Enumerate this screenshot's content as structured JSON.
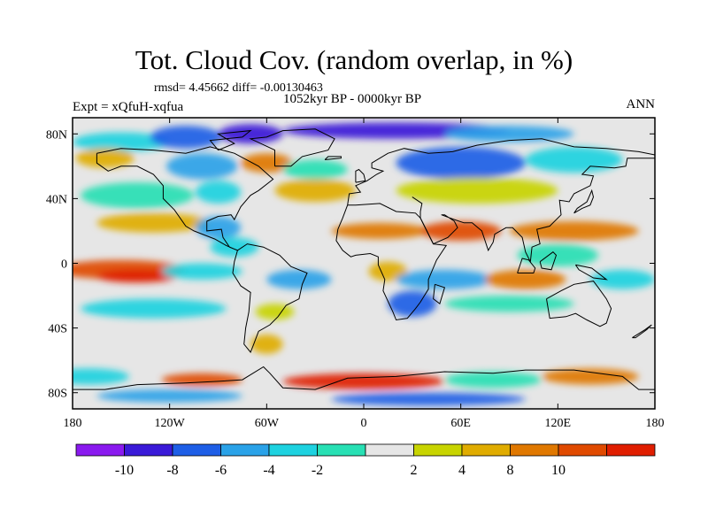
{
  "title": "Tot. Cloud Cov. (random overlap, in %)",
  "stats": "rmsd= 4.45662 diff= -0.00130463",
  "period": "1052kyr BP - 0000kyr BP",
  "experiment": "Expt = xQfuH-xqfua",
  "season": "ANN",
  "map": {
    "lon_range": [
      -180,
      180
    ],
    "lat_range": [
      -90,
      90
    ],
    "x_ticks": [
      {
        "lon": -180,
        "label": "180"
      },
      {
        "lon": -120,
        "label": "120W"
      },
      {
        "lon": -60,
        "label": "60W"
      },
      {
        "lon": 0,
        "label": "0"
      },
      {
        "lon": 60,
        "label": "60E"
      },
      {
        "lon": 120,
        "label": "120E"
      },
      {
        "lon": 180,
        "label": "180"
      }
    ],
    "y_ticks": [
      {
        "lat": 80,
        "label": "80N"
      },
      {
        "lat": 40,
        "label": "40N"
      },
      {
        "lat": 0,
        "label": "0"
      },
      {
        "lat": -40,
        "label": "40S"
      },
      {
        "lat": -80,
        "label": "80S"
      }
    ],
    "background_color": "#e6e6e6"
  },
  "colorbar": {
    "colors": [
      "#8a1aef",
      "#3a1ad8",
      "#1e5ee6",
      "#2aa2e8",
      "#1ed2e0",
      "#28e0b4",
      "#e6e6e6",
      "#c8d400",
      "#e0ac00",
      "#e07800",
      "#e04a00",
      "#e01e00"
    ],
    "labels": [
      "-10",
      "-8",
      "-6",
      "-4",
      "-2",
      "2",
      "4",
      "8",
      "10"
    ]
  },
  "fields": [
    {
      "lon": -150,
      "lat": 75,
      "rx": 30,
      "ry": 6,
      "level": 4
    },
    {
      "lon": -110,
      "lat": 78,
      "rx": 22,
      "ry": 7,
      "level": 2
    },
    {
      "lon": -70,
      "lat": 80,
      "rx": 20,
      "ry": 6,
      "level": 1
    },
    {
      "lon": 20,
      "lat": 82,
      "rx": 70,
      "ry": 5,
      "level": 1
    },
    {
      "lon": 90,
      "lat": 80,
      "rx": 40,
      "ry": 5,
      "level": 3
    },
    {
      "lon": -160,
      "lat": 65,
      "rx": 18,
      "ry": 6,
      "level": 8
    },
    {
      "lon": -100,
      "lat": 60,
      "rx": 22,
      "ry": 8,
      "level": 3
    },
    {
      "lon": -60,
      "lat": 62,
      "rx": 16,
      "ry": 6,
      "level": 9
    },
    {
      "lon": -30,
      "lat": 58,
      "rx": 20,
      "ry": 6,
      "level": 5
    },
    {
      "lon": 60,
      "lat": 62,
      "rx": 40,
      "ry": 10,
      "level": 2
    },
    {
      "lon": 130,
      "lat": 64,
      "rx": 30,
      "ry": 8,
      "level": 4
    },
    {
      "lon": -140,
      "lat": 42,
      "rx": 35,
      "ry": 8,
      "level": 5
    },
    {
      "lon": -90,
      "lat": 44,
      "rx": 14,
      "ry": 7,
      "level": 4
    },
    {
      "lon": -30,
      "lat": 45,
      "rx": 25,
      "ry": 7,
      "level": 8
    },
    {
      "lon": 70,
      "lat": 45,
      "rx": 50,
      "ry": 8,
      "level": 7
    },
    {
      "lon": -130,
      "lat": 25,
      "rx": 35,
      "ry": 6,
      "level": 8
    },
    {
      "lon": -90,
      "lat": 22,
      "rx": 14,
      "ry": 7,
      "level": 3
    },
    {
      "lon": 10,
      "lat": 20,
      "rx": 30,
      "ry": 5,
      "level": 9
    },
    {
      "lon": 60,
      "lat": 20,
      "rx": 25,
      "ry": 6,
      "level": 10
    },
    {
      "lon": 130,
      "lat": 20,
      "rx": 40,
      "ry": 6,
      "level": 9
    },
    {
      "lon": -80,
      "lat": 10,
      "rx": 15,
      "ry": 6,
      "level": 4
    },
    {
      "lon": 120,
      "lat": 5,
      "rx": 25,
      "ry": 7,
      "level": 5
    },
    {
      "lon": -150,
      "lat": -4,
      "rx": 40,
      "ry": 6,
      "level": 10
    },
    {
      "lon": -140,
      "lat": -8,
      "rx": 25,
      "ry": 4,
      "level": 11
    },
    {
      "lon": -100,
      "lat": -5,
      "rx": 25,
      "ry": 5,
      "level": 4
    },
    {
      "lon": -40,
      "lat": -10,
      "rx": 20,
      "ry": 6,
      "level": 3
    },
    {
      "lon": 15,
      "lat": -5,
      "rx": 12,
      "ry": 6,
      "level": 8
    },
    {
      "lon": 50,
      "lat": -10,
      "rx": 30,
      "ry": 6,
      "level": 3
    },
    {
      "lon": 100,
      "lat": -10,
      "rx": 25,
      "ry": 6,
      "level": 9
    },
    {
      "lon": 160,
      "lat": -10,
      "rx": 20,
      "ry": 6,
      "level": 4
    },
    {
      "lon": -130,
      "lat": -28,
      "rx": 45,
      "ry": 6,
      "level": 4
    },
    {
      "lon": -55,
      "lat": -30,
      "rx": 12,
      "ry": 5,
      "level": 7
    },
    {
      "lon": 30,
      "lat": -25,
      "rx": 15,
      "ry": 8,
      "level": 2
    },
    {
      "lon": 90,
      "lat": -25,
      "rx": 40,
      "ry": 5,
      "level": 5
    },
    {
      "lon": -60,
      "lat": -50,
      "rx": 10,
      "ry": 6,
      "level": 8
    },
    {
      "lon": -170,
      "lat": -70,
      "rx": 25,
      "ry": 5,
      "level": 4
    },
    {
      "lon": -100,
      "lat": -72,
      "rx": 25,
      "ry": 4,
      "level": 10
    },
    {
      "lon": 0,
      "lat": -73,
      "rx": 50,
      "ry": 5,
      "level": 11
    },
    {
      "lon": 80,
      "lat": -72,
      "rx": 30,
      "ry": 5,
      "level": 5
    },
    {
      "lon": 140,
      "lat": -70,
      "rx": 30,
      "ry": 5,
      "level": 9
    },
    {
      "lon": -120,
      "lat": -82,
      "rx": 45,
      "ry": 4,
      "level": 3
    },
    {
      "lon": 40,
      "lat": -84,
      "rx": 60,
      "ry": 4,
      "level": 2
    }
  ]
}
